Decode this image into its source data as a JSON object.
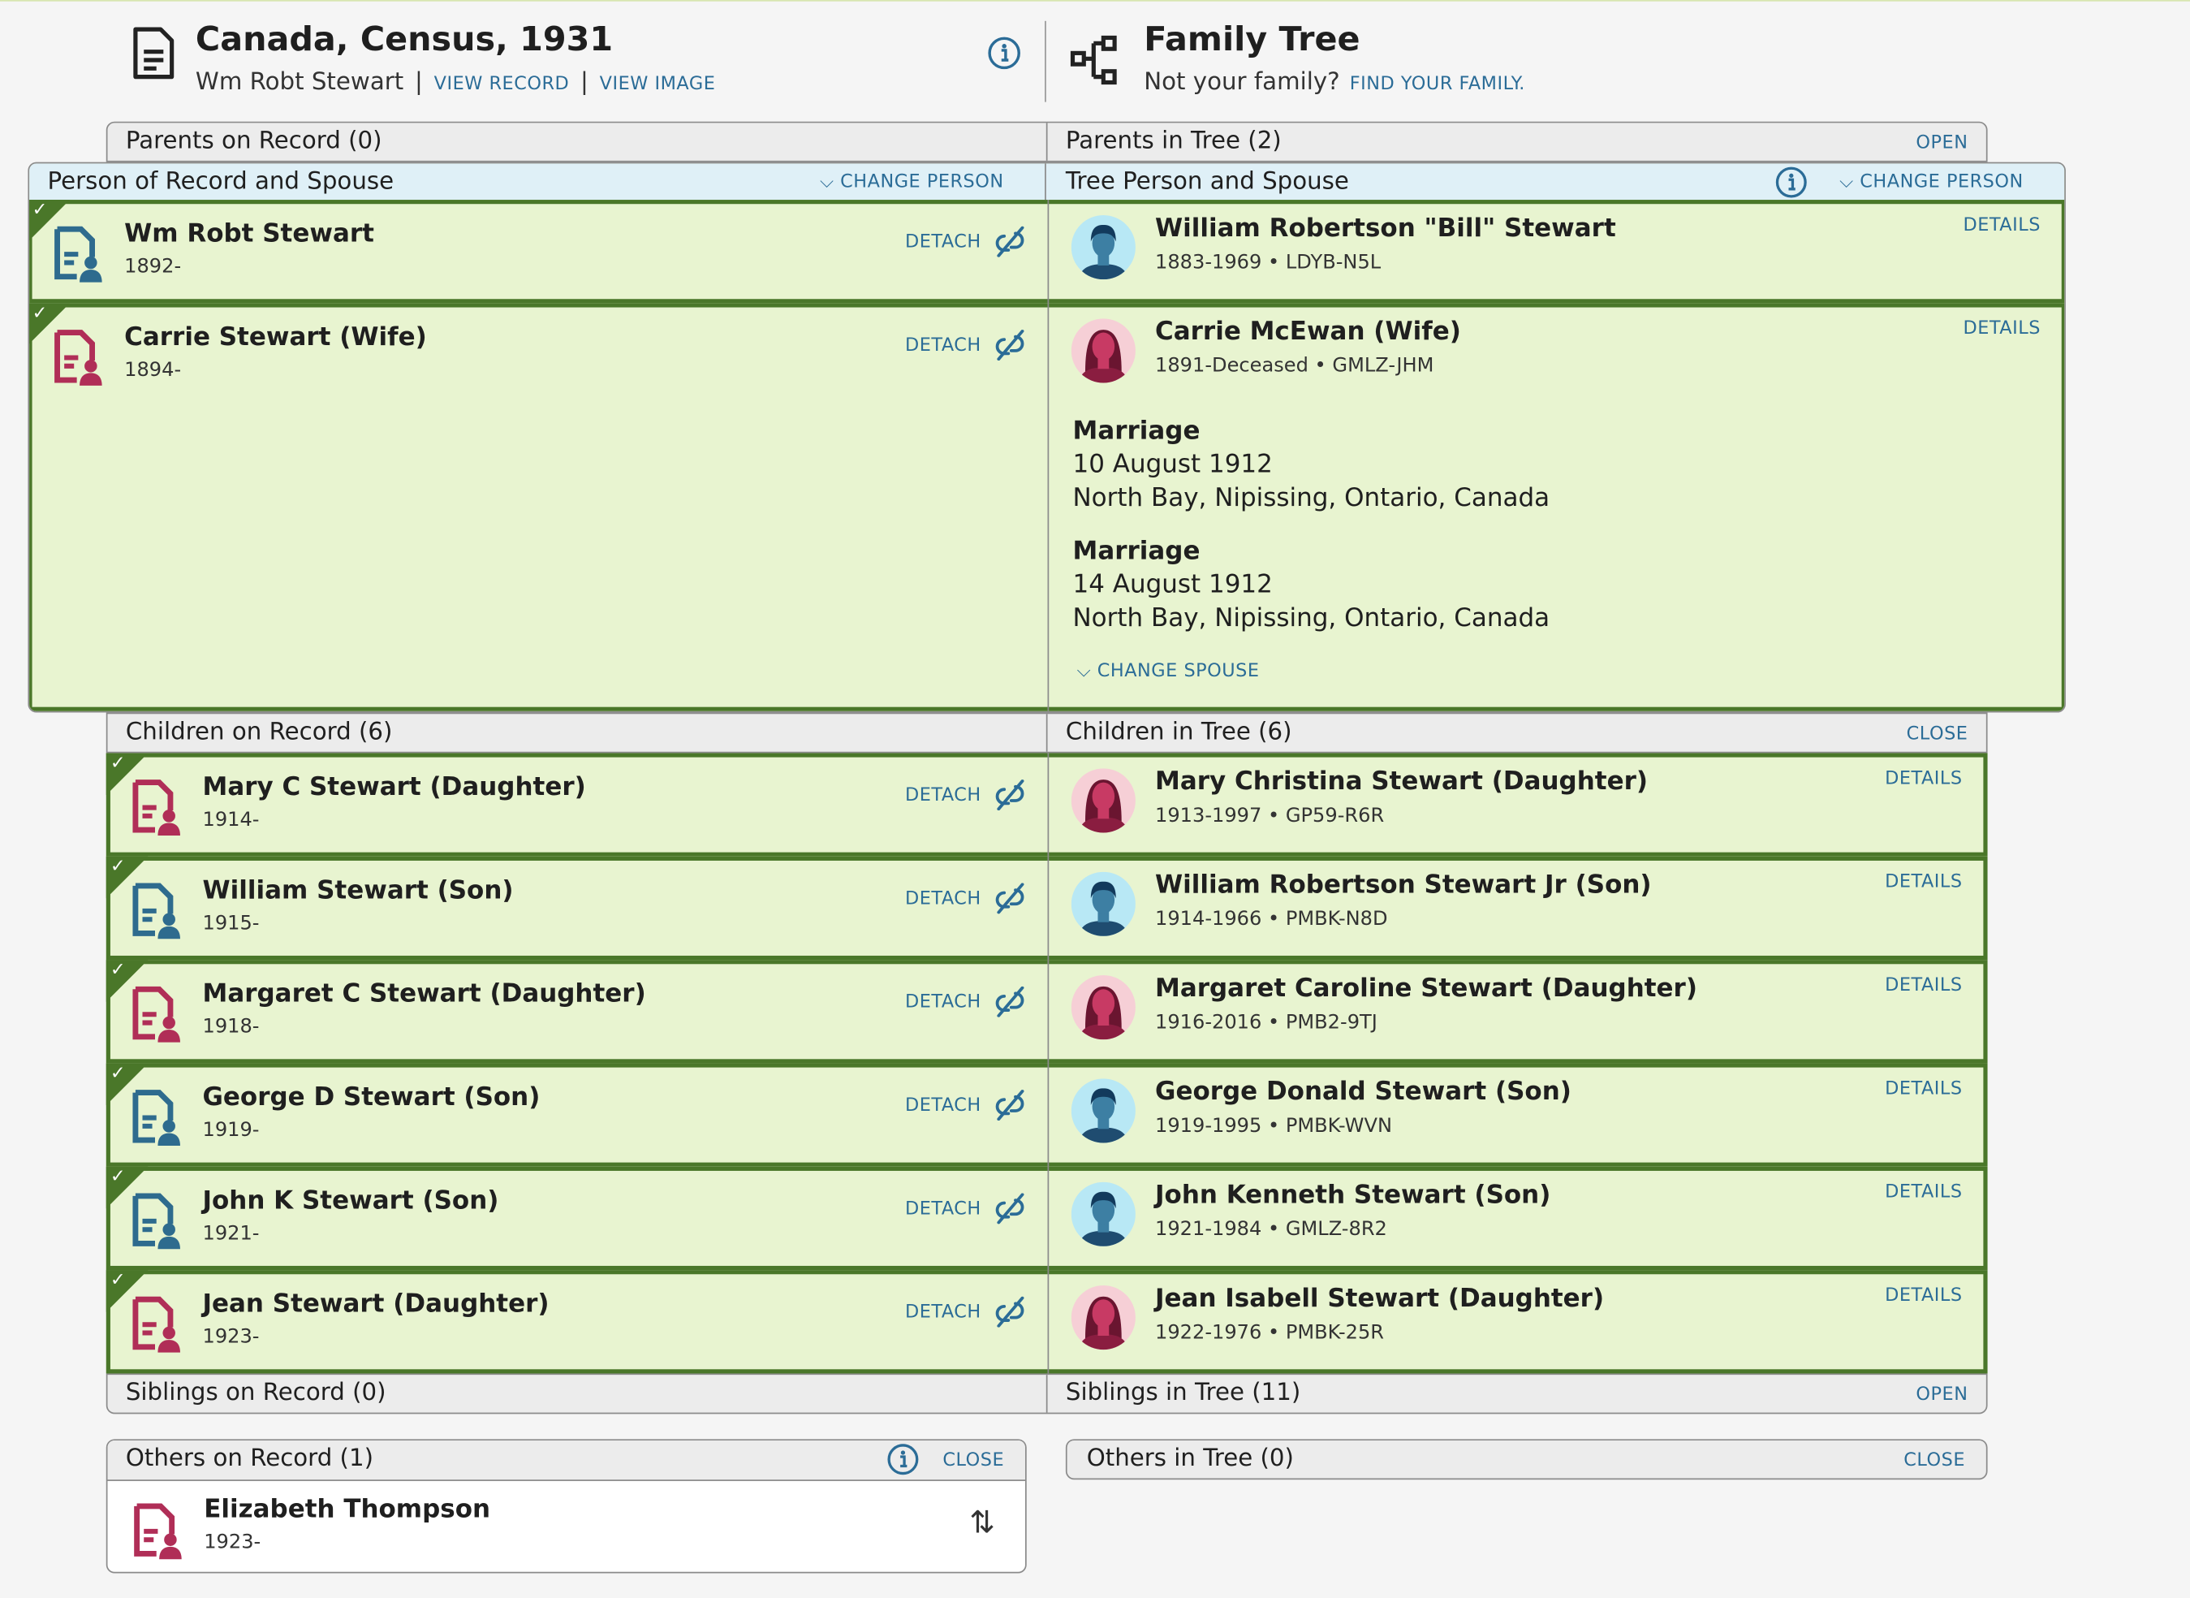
{
  "header": {
    "record_title": "Canada, Census, 1931",
    "record_person": "Wm Robt Stewart",
    "view_record": "VIEW RECORD",
    "view_image": "VIEW IMAGE",
    "tree_title": "Family Tree",
    "not_family": "Not your family?",
    "find_family": "FIND YOUR FAMILY."
  },
  "parents": {
    "left": "Parents on Record (0)",
    "right": "Parents in Tree (2)",
    "action": "OPEN"
  },
  "spouse_section": {
    "left": "Person of Record and Spouse",
    "left_action": "CHANGE PERSON",
    "right": "Tree Person and Spouse",
    "right_action": "CHANGE PERSON",
    "detach": "DETACH",
    "details": "DETAILS",
    "change_spouse": "CHANGE SPOUSE",
    "rows": [
      {
        "record_name": "Wm Robt Stewart",
        "record_years": "1892-",
        "tree_name": "William Robertson \"Bill\" Stewart",
        "tree_info": "1883-1969 • LDYB-N5L",
        "gender": "male"
      },
      {
        "record_name": "Carrie Stewart (Wife)",
        "record_years": "1894-",
        "tree_name": "Carrie McEwan (Wife)",
        "tree_info": "1891-Deceased • GMLZ-JHM",
        "gender": "female"
      }
    ],
    "marriages": [
      {
        "label": "Marriage",
        "date": "10 August 1912",
        "place": "North Bay, Nipissing, Ontario, Canada"
      },
      {
        "label": "Marriage",
        "date": "14 August 1912",
        "place": "North Bay, Nipissing, Ontario, Canada"
      }
    ]
  },
  "children": {
    "left": "Children on Record (6)",
    "right": "Children in Tree (6)",
    "action": "CLOSE",
    "detach": "DETACH",
    "details": "DETAILS",
    "rows": [
      {
        "record_name": "Mary C Stewart (Daughter)",
        "record_years": "1914-",
        "tree_name": "Mary Christina Stewart (Daughter)",
        "tree_info": "1913-1997 • GP59-R6R",
        "gender": "female"
      },
      {
        "record_name": "William Stewart (Son)",
        "record_years": "1915-",
        "tree_name": "William Robertson Stewart Jr (Son)",
        "tree_info": "1914-1966 • PMBK-N8D",
        "gender": "male"
      },
      {
        "record_name": "Margaret C Stewart (Daughter)",
        "record_years": "1918-",
        "tree_name": "Margaret Caroline Stewart (Daughter)",
        "tree_info": "1916-2016 • PMB2-9TJ",
        "gender": "female"
      },
      {
        "record_name": "George D Stewart (Son)",
        "record_years": "1919-",
        "tree_name": "George Donald Stewart (Son)",
        "tree_info": "1919-1995 • PMBK-WVN",
        "gender": "male"
      },
      {
        "record_name": "John K Stewart (Son)",
        "record_years": "1921-",
        "tree_name": "John Kenneth Stewart (Son)",
        "tree_info": "1921-1984 • GMLZ-8R2",
        "gender": "male"
      },
      {
        "record_name": "Jean Stewart (Daughter)",
        "record_years": "1923-",
        "tree_name": "Jean Isabell Stewart (Daughter)",
        "tree_info": "1922-1976 • PMBK-25R",
        "gender": "female"
      }
    ]
  },
  "siblings": {
    "left": "Siblings on Record (0)",
    "right": "Siblings in Tree (11)",
    "action": "OPEN"
  },
  "others_record": {
    "title": "Others on Record (1)",
    "action": "CLOSE",
    "person": {
      "name": "Elizabeth Thompson",
      "years": "1923-",
      "gender": "female"
    }
  },
  "others_tree": {
    "title": "Others in Tree (0)",
    "action": "CLOSE"
  },
  "colors": {
    "male": "#2e6b8e",
    "female": "#b02e57",
    "match_green": "#4a7729",
    "row_bg": "#e8f4d0",
    "link": "#2b6c97",
    "section_blue": "#dff0f7"
  }
}
